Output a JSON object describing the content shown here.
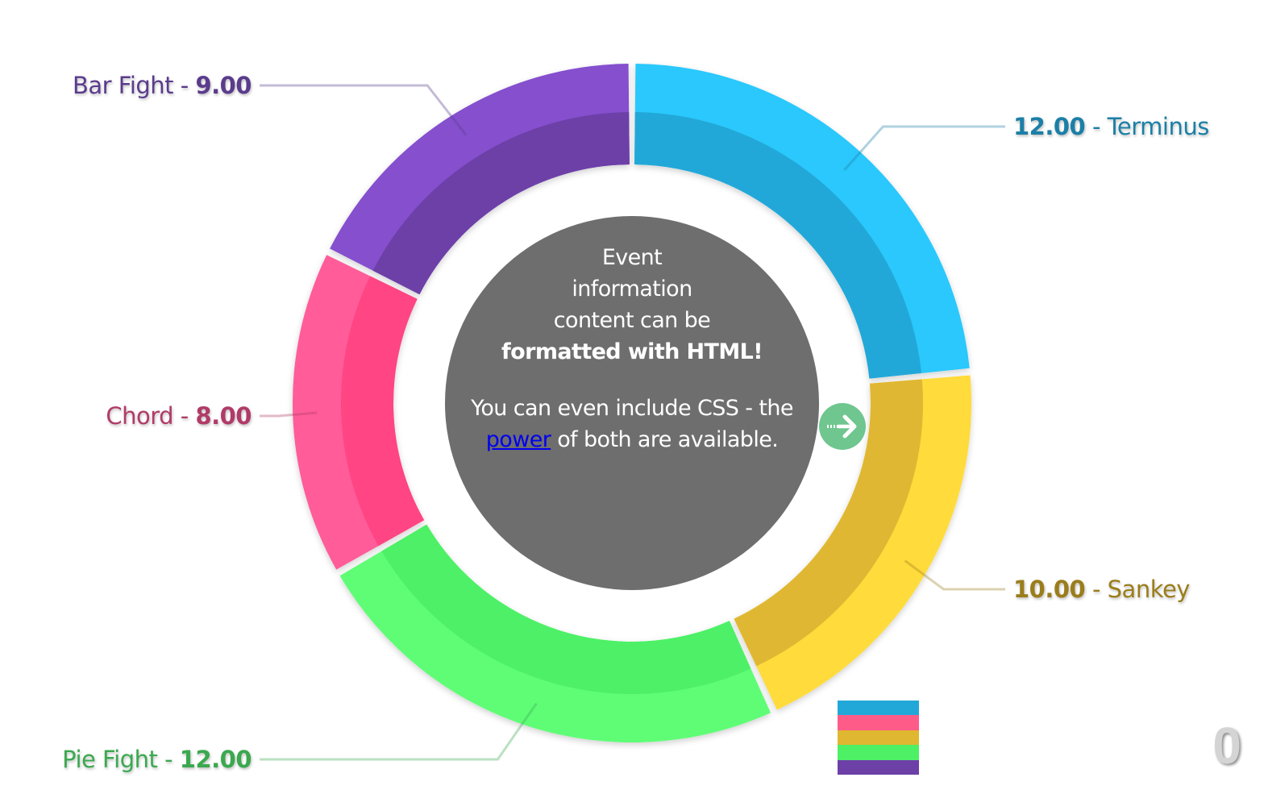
{
  "chart_data": {
    "type": "pie",
    "style": "donut",
    "slices": [
      {
        "name": "Terminus",
        "value": 12.0,
        "value_text": "12.00",
        "color": "#2ac8fc",
        "inner_color": "#22a8d8",
        "text_color": "#1e7fa6",
        "label_side": "right",
        "label_format": "value-name"
      },
      {
        "name": "Sankey",
        "value": 10.0,
        "value_text": "10.00",
        "color": "#ffdb3b",
        "inner_color": "#e0b730",
        "text_color": "#9a7d1c",
        "label_side": "right",
        "label_format": "value-name"
      },
      {
        "name": "Pie Fight",
        "value": 12.0,
        "value_text": "12.00",
        "color": "#5efd76",
        "inner_color": "#4ef066",
        "text_color": "#3aa850",
        "label_side": "left",
        "label_format": "name-value"
      },
      {
        "name": "Chord",
        "value": 8.0,
        "value_text": "8.00",
        "color": "#ff5b99",
        "inner_color": "#ff4483",
        "text_color": "#b03a68",
        "label_side": "left",
        "label_format": "name-value"
      },
      {
        "name": "Bar Fight",
        "value": 9.0,
        "value_text": "9.00",
        "color": "#8550ce",
        "inner_color": "#6d40a8",
        "text_color": "#5a3b8c",
        "label_side": "left",
        "label_format": "name-value"
      }
    ],
    "legend": {
      "position": "bottom-right",
      "colors": [
        "#22a8d8",
        "#ff5b89",
        "#e0b730",
        "#4ef066",
        "#6d40a8"
      ]
    }
  },
  "center_info": {
    "para1_lines": [
      "Event",
      "information",
      "content can be"
    ],
    "para1_bold": "formatted with HTML!",
    "para2_before": "You can even include CSS - the",
    "link_text": "power",
    "para2_after": "of both are available.",
    "background": "#6e6e6e"
  },
  "next_button": {
    "icon": "arrow-right-icon",
    "color": "#6fc68e"
  },
  "counter": "0",
  "separator": " - "
}
